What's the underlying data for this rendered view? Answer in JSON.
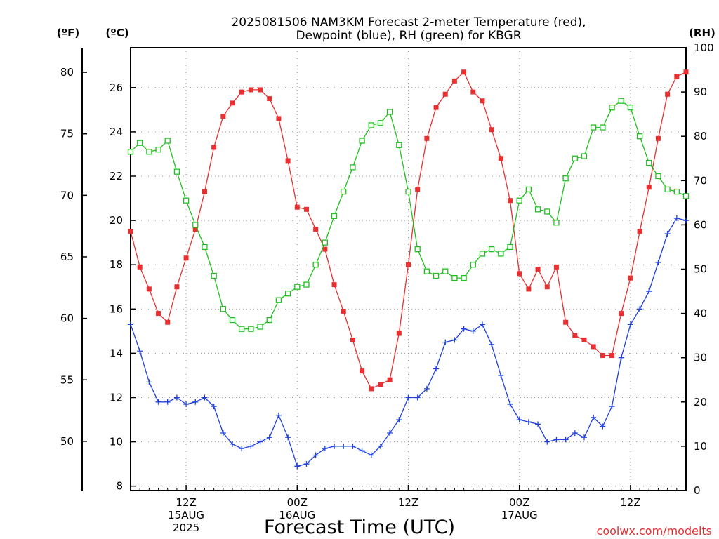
{
  "chart_data": {
    "type": "line",
    "title_line1": "2025081506 NAM3KM Forecast 2-meter Temperature (red),",
    "title_line2": "Dewpoint (blue), RH (green) for KBGR",
    "units": {
      "fahrenheit": "(ºF)",
      "celsius": "(ºC)",
      "rh": "(RH)"
    },
    "xlabel": "Forecast Time (UTC)",
    "credit": "coolwx.com/modelts",
    "x_start_hour": 7,
    "x_end_hour": 67,
    "xlim": [
      7,
      67
    ],
    "x_ticks": [
      {
        "hour": 13,
        "line1": "12Z",
        "line2": "15AUG",
        "line3": "2025"
      },
      {
        "hour": 25,
        "line1": "00Z",
        "line2": "16AUG",
        "line3": ""
      },
      {
        "hour": 37,
        "line1": "12Z",
        "line2": "",
        "line3": ""
      },
      {
        "hour": 49,
        "line1": "00Z",
        "line2": "17AUG",
        "line3": ""
      },
      {
        "hour": 61,
        "line1": "12Z",
        "line2": "",
        "line3": ""
      }
    ],
    "celsius_axis": {
      "ylim": [
        7.8,
        27.8
      ],
      "ticks": [
        "8",
        "10",
        "12",
        "14",
        "16",
        "18",
        "20",
        "22",
        "24",
        "26"
      ]
    },
    "fahrenheit_axis": {
      "ylim": [
        46.0,
        82.0
      ],
      "ticks": [
        "50",
        "55",
        "60",
        "65",
        "70",
        "75",
        "80"
      ]
    },
    "rh_axis": {
      "ylim": [
        0,
        100
      ],
      "ticks": [
        "0",
        "10",
        "20",
        "30",
        "40",
        "50",
        "60",
        "70",
        "80",
        "90",
        "100"
      ]
    },
    "grid": true,
    "series": [
      {
        "name": "Temperature",
        "color": "#e83030",
        "axis": "celsius",
        "marker": "filled-square",
        "values": [
          19.5,
          17.9,
          16.9,
          15.8,
          15.4,
          17.0,
          18.3,
          19.6,
          21.3,
          23.3,
          24.7,
          25.3,
          25.8,
          25.9,
          25.9,
          25.5,
          24.6,
          22.7,
          20.6,
          20.5,
          19.6,
          18.7,
          17.1,
          15.9,
          14.6,
          13.2,
          12.4,
          12.6,
          12.8,
          14.9,
          18.0,
          21.4,
          23.7,
          25.1,
          25.7,
          26.3,
          26.7,
          25.8,
          25.4,
          24.1,
          22.8,
          20.9,
          17.6,
          16.9,
          17.8,
          17.0,
          17.9,
          15.4,
          14.8,
          14.6,
          14.3,
          13.9,
          13.9,
          15.8,
          17.4,
          19.5,
          21.5,
          23.7,
          25.7,
          26.5,
          26.7
        ]
      },
      {
        "name": "Dewpoint",
        "color": "#2040e0",
        "axis": "celsius",
        "marker": "plus",
        "values": [
          15.3,
          14.1,
          12.7,
          11.8,
          11.8,
          12.0,
          11.7,
          11.8,
          12.0,
          11.6,
          10.4,
          9.9,
          9.7,
          9.8,
          10.0,
          10.2,
          11.2,
          10.2,
          8.9,
          9.0,
          9.4,
          9.7,
          9.8,
          9.8,
          9.8,
          9.6,
          9.4,
          9.8,
          10.4,
          11.0,
          12.0,
          12.0,
          12.4,
          13.3,
          14.5,
          14.6,
          15.1,
          15.0,
          15.3,
          14.4,
          13.0,
          11.7,
          11.0,
          10.9,
          10.8,
          10.0,
          10.1,
          10.1,
          10.4,
          10.2,
          11.1,
          10.7,
          11.6,
          13.8,
          15.3,
          16.0,
          16.8,
          18.1,
          19.4,
          20.1,
          20.0
        ]
      },
      {
        "name": "RH",
        "color": "#20c020",
        "axis": "rh",
        "marker": "open-square",
        "values": [
          76.5,
          78.5,
          76.5,
          77.0,
          79.0,
          72.0,
          65.5,
          60.0,
          55.0,
          48.5,
          41.0,
          38.5,
          36.5,
          36.5,
          37.0,
          38.5,
          43.0,
          44.5,
          46.0,
          46.5,
          51.0,
          56.0,
          62.0,
          67.5,
          73.0,
          79.0,
          82.5,
          83.0,
          85.5,
          78.0,
          67.5,
          54.5,
          49.5,
          48.5,
          49.5,
          48.0,
          48.0,
          51.0,
          53.5,
          54.5,
          53.5,
          55.0,
          65.5,
          68.0,
          63.5,
          63.0,
          60.5,
          70.5,
          75.0,
          75.5,
          82.0,
          82.0,
          86.5,
          88.0,
          86.5,
          80.0,
          74.0,
          71.0,
          68.0,
          67.5,
          66.5
        ]
      }
    ]
  }
}
